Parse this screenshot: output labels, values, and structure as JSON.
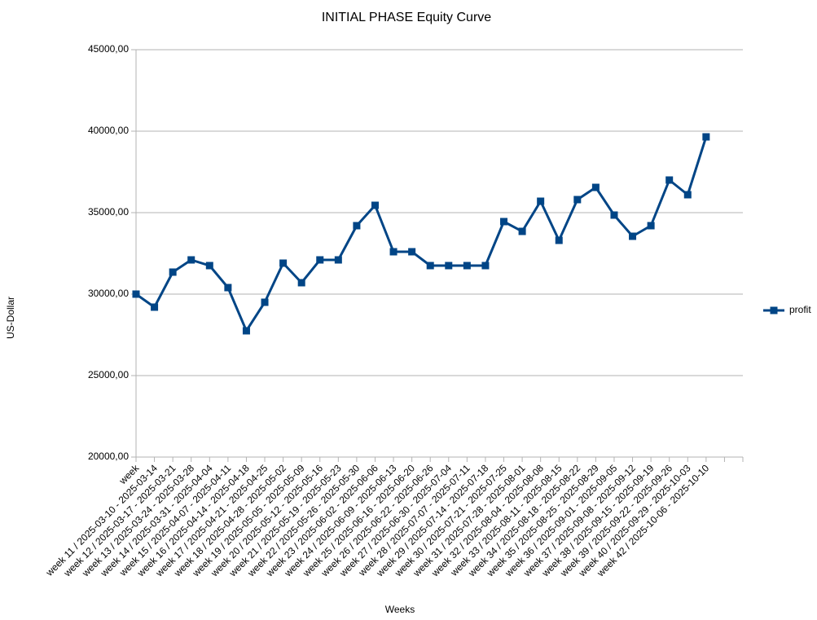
{
  "chart_data": {
    "type": "line",
    "title": "INITIAL PHASE Equity Curve",
    "x_label": "Weeks",
    "y_label": "US-Dollar",
    "categories": [
      "week",
      "week 11 / 2025-03-10 - 2025-03-14",
      "week 12 / 2025-03-17 - 2025-03-21",
      "week 13 / 2025-03-24 - 2025-03-28",
      "week 14 / 2025-03-31 - 2025-04-04",
      "week 15 / 2025-04-07 - 2025-04-11",
      "week 16 / 2025-04-14 - 2025-04-18",
      "week 17 / 2025-04-21 - 2025-04-25",
      "week 18 / 2025-04-28 - 2025-05-02",
      "week 19 / 2025-05-05 - 2025-05-09",
      "week 20 / 2025-05-12 - 2025-05-16",
      "week 21 / 2025-05-19 - 2025-05-23",
      "week 22 / 2025-05-26 - 2025-05-30",
      "week 23 / 2025-06-02 - 2025-06-06",
      "week 24 / 2025-06-09 - 2025-06-13",
      "week 25 / 2025-06-16 - 2025-06-20",
      "week 26 / 2025-06-22 - 2025-06-26",
      "week 27 / 2025-06-30 - 2025-07-04",
      "week 28 / 2025-07-07 - 2025-07-11",
      "week 29 / 2025-07-14 - 2025-07-18",
      "week 30 / 2025-07-21 - 2025-07-25",
      "week 31 / 2025-07-28 - 2025-08-01",
      "week 32 / 2025-08-04 - 2025-08-08",
      "week 33 / 2025-08-11 - 2025-08-15",
      "week 34 / 2025-08-18 - 2025-08-22",
      "week 35 / 2025-08-25 - 2025-08-29",
      "week 36 / 2025-09-01 - 2025-09-05",
      "week 37 / 2025-09-08 - 2025-09-12",
      "week 38 / 2025-09-15 - 2025-09-19",
      "week 39 / 2025-09-22 - 2025-09-26",
      "week 40 / 2025-09-29 - 2025-10-03",
      "week 42 / 2025-10-06 - 2025-10-10",
      null,
      null
    ],
    "series": [
      {
        "name": "profit",
        "color": "#004586",
        "values": [
          30000,
          29200,
          31350,
          32100,
          31750,
          30400,
          27750,
          29500,
          31900,
          30700,
          32100,
          32100,
          34200,
          35450,
          32600,
          32600,
          31750,
          31750,
          31750,
          31750,
          34450,
          33850,
          35700,
          33300,
          35800,
          36550,
          34850,
          33550,
          34200,
          37000,
          36100,
          39650,
          null,
          null
        ]
      }
    ],
    "ylim": [
      20000,
      45000
    ],
    "yticks": [
      {
        "value": 20000,
        "label": "20000,00"
      },
      {
        "value": 25000,
        "label": "25000,00"
      },
      {
        "value": 30000,
        "label": "30000,00"
      },
      {
        "value": 35000,
        "label": "35000,00"
      },
      {
        "value": 40000,
        "label": "40000,00"
      },
      {
        "value": 45000,
        "label": "45000,00"
      }
    ],
    "grid": true,
    "legend": "right"
  }
}
